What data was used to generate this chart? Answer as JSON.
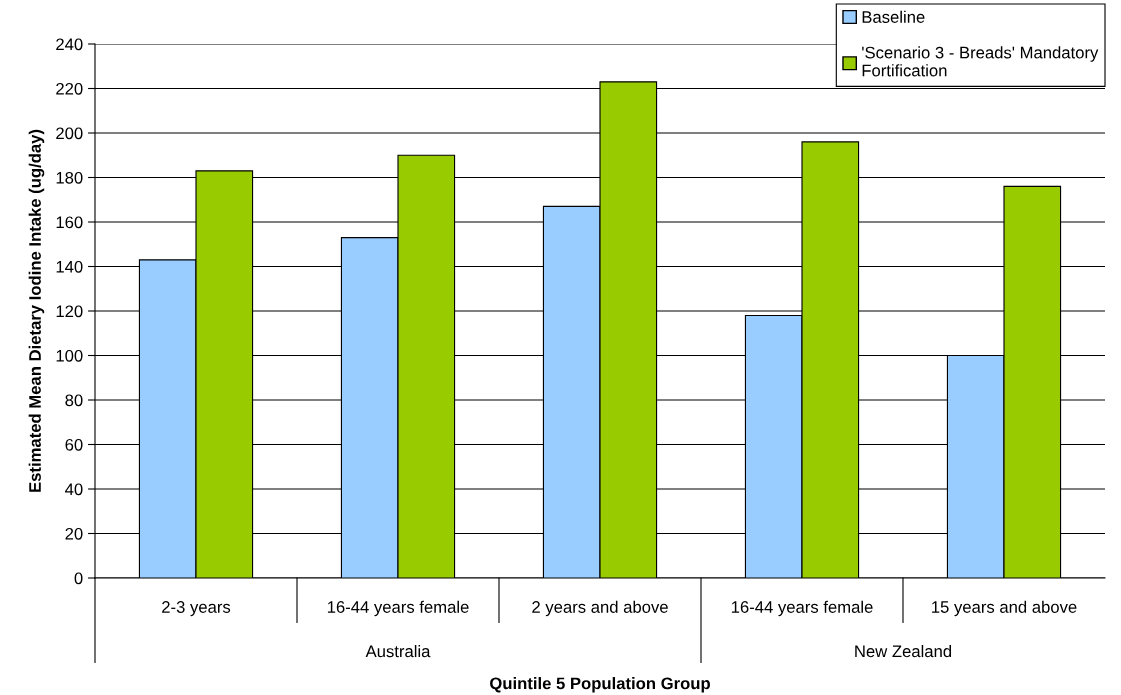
{
  "chart_data": {
    "type": "bar",
    "xlabel": "Quintile 5 Population Group",
    "ylabel": "Estimated Mean Dietary Iodine Intake (ug/day)",
    "categories": [
      "2-3 years",
      "16-44 years female",
      "2 years and above",
      "16-44 years female",
      "15 years and above"
    ],
    "series": [
      {
        "name": "Baseline",
        "color": "#99ccff",
        "values": [
          143,
          153,
          167,
          118,
          100
        ]
      },
      {
        "name": "'Scenario 3 - Breads' Mandatory\nFortification",
        "color": "#99cc00",
        "values": [
          183,
          190,
          223,
          196,
          176
        ]
      }
    ],
    "annotations": [
      "Australia",
      "New Zealand"
    ],
    "ylim": [
      0,
      240
    ],
    "yticks": [
      0,
      20,
      40,
      60,
      80,
      100,
      120,
      140,
      160,
      180,
      200,
      220,
      240
    ],
    "grid": "y",
    "legend": "top right"
  }
}
